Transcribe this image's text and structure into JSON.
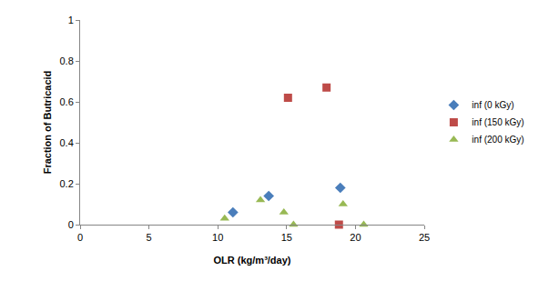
{
  "chart_data": {
    "type": "scatter",
    "x_label": "OLR (kg/m³/day)",
    "y_label": "Fraction of Butricacid",
    "xlim": [
      0,
      25
    ],
    "xticks": [
      0,
      5,
      10,
      15,
      20,
      25
    ],
    "ylim": [
      0,
      1
    ],
    "yticks": [
      0,
      0.2,
      0.4,
      0.6,
      0.8,
      1
    ],
    "grid": false,
    "legend": "right",
    "series": [
      {
        "name": "inf (0 kGy)",
        "color": "#4a7ebb",
        "marker": "diamond",
        "x": [
          11.1,
          13.7,
          18.9
        ],
        "values": [
          0.06,
          0.14,
          0.18
        ]
      },
      {
        "name": "inf (150 kGy)",
        "color": "#be4b48",
        "marker": "square",
        "x": [
          15.1,
          17.9,
          18.8
        ],
        "values": [
          0.62,
          0.67,
          0.0
        ]
      },
      {
        "name": "inf (200 kGy)",
        "color": "#98b954",
        "marker": "triangle",
        "x": [
          10.5,
          13.1,
          14.8,
          15.5,
          19.1,
          20.6
        ],
        "values": [
          0.03,
          0.12,
          0.06,
          0.0,
          0.1,
          0.0
        ]
      }
    ]
  }
}
